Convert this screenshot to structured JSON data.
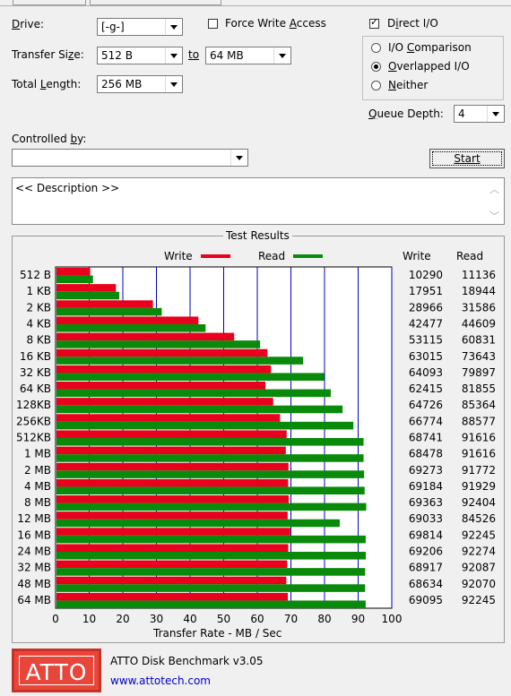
{
  "drive": {
    "label": "Drive:",
    "value": "[-g-]"
  },
  "force_write": {
    "label": "Force Write Access",
    "checked": false
  },
  "direct_io": {
    "label": "Direct I/O",
    "checked": true
  },
  "transfer_size": {
    "label": "Transfer Size:",
    "from": "512 B",
    "to_label": "to",
    "to": "64 MB"
  },
  "total_length": {
    "label": "Total Length:",
    "value": "256 MB"
  },
  "io_mode": {
    "options": [
      "I/O Comparison",
      "Overlapped I/O",
      "Neither"
    ],
    "selected": "Overlapped I/O"
  },
  "queue_depth": {
    "label": "Queue Depth:",
    "value": "4"
  },
  "controlled_by": {
    "label": "Controlled by:",
    "value": ""
  },
  "start_button": "Start",
  "description": "<< Description >>",
  "results": {
    "title": "Test Results",
    "legend_write": "Write",
    "legend_read": "Read",
    "col_write": "Write",
    "col_read": "Read",
    "xlabel": "Transfer Rate - MB / Sec"
  },
  "colors": {
    "write": "#e8001c",
    "read": "#0a8a0a",
    "grid": "#0000c8",
    "logo_bg": "#e8463a"
  },
  "chart_data": {
    "type": "bar",
    "title": "Test Results",
    "xlabel": "Transfer Rate - MB / Sec",
    "ylabel": "",
    "xlim": [
      0,
      100
    ],
    "x_ticks": [
      0,
      10,
      20,
      30,
      40,
      50,
      60,
      70,
      80,
      90,
      100
    ],
    "categories": [
      "512 B",
      "1 KB",
      "2 KB",
      "4 KB",
      "8 KB",
      "16 KB",
      "32 KB",
      "64 KB",
      "128KB",
      "256KB",
      "512KB",
      "1 MB",
      "2 MB",
      "4 MB",
      "8 MB",
      "12 MB",
      "16 MB",
      "24 MB",
      "32 MB",
      "48 MB",
      "64 MB"
    ],
    "series": [
      {
        "name": "Write",
        "values": [
          10290,
          17951,
          28966,
          42477,
          53115,
          63015,
          64093,
          62415,
          64726,
          66774,
          68741,
          68478,
          69273,
          69184,
          69363,
          69033,
          69814,
          69206,
          68917,
          68634,
          69095
        ]
      },
      {
        "name": "Read",
        "values": [
          11136,
          18944,
          31586,
          44609,
          60831,
          73643,
          79897,
          81855,
          85364,
          88577,
          91616,
          91616,
          91772,
          91929,
          92404,
          84526,
          92245,
          92274,
          92087,
          92070,
          92245
        ]
      }
    ]
  },
  "footer": {
    "logo": "ATTO",
    "product": "ATTO Disk Benchmark v3.05",
    "url": "www.attotech.com"
  }
}
